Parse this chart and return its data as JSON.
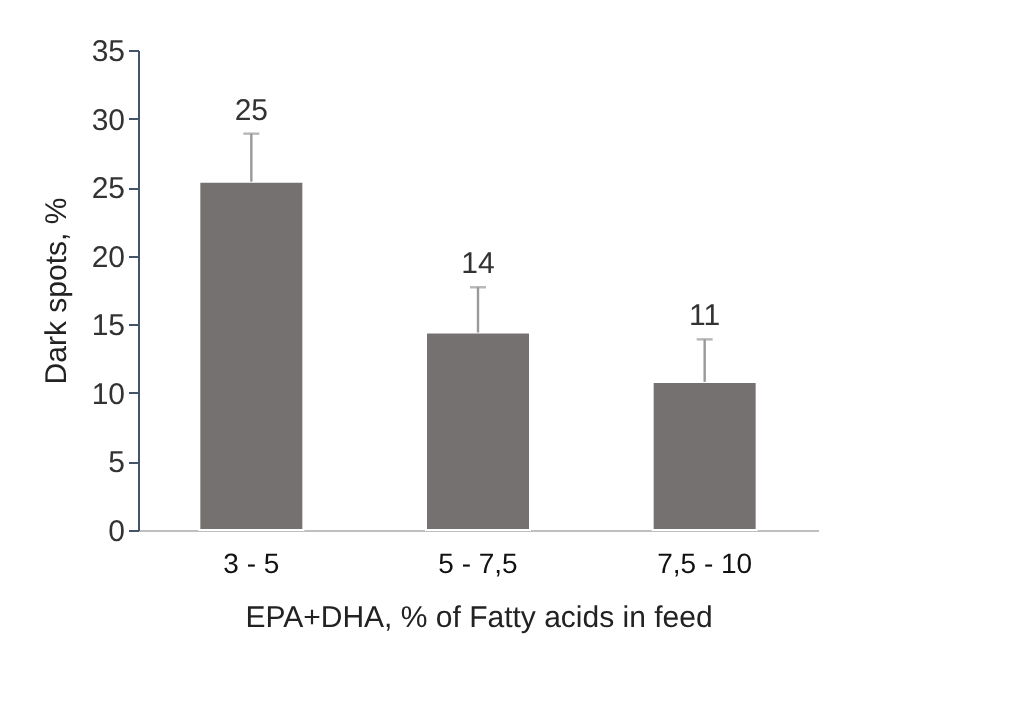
{
  "chart_data": {
    "type": "bar",
    "xlabel": "EPA+DHA, % of Fatty acids in feed",
    "ylabel": "Dark spots, %",
    "categories": [
      "3 - 5",
      "5 - 7,5",
      "7,5 - 10"
    ],
    "values": [
      25.4,
      14.4,
      10.8
    ],
    "value_labels": [
      "25",
      "14",
      "11"
    ],
    "errors": [
      [
        25.4,
        28.9
      ],
      [
        14.4,
        17.7
      ],
      [
        10.8,
        13.9
      ]
    ],
    "color": "#767171",
    "ylim": [
      0,
      35
    ],
    "yticks": [
      0,
      5,
      10,
      15,
      20,
      25,
      30,
      35
    ],
    "grid": false
  }
}
